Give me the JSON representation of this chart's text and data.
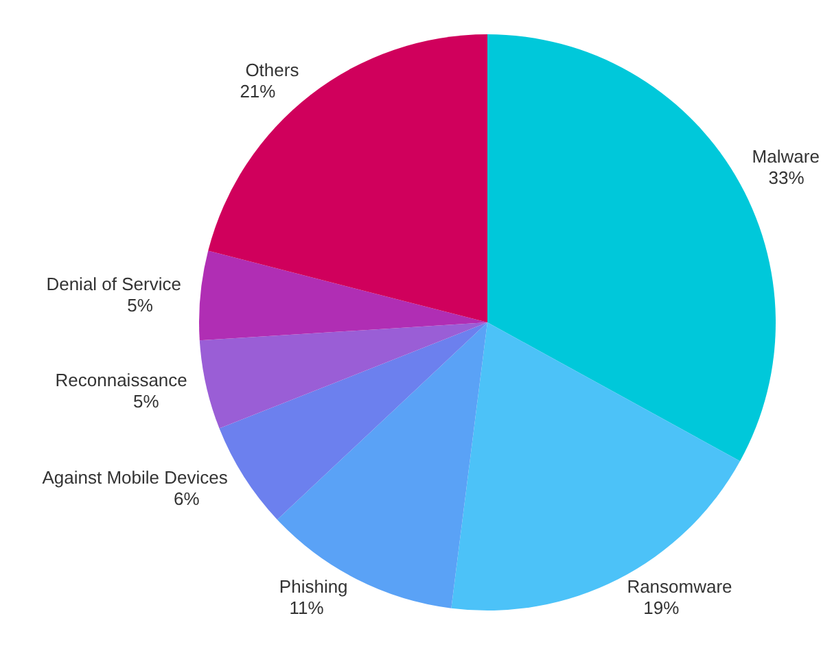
{
  "chart_data": {
    "type": "pie",
    "categories": [
      "Malware",
      "Ransomware",
      "Phishing",
      "Against Mobile Devices",
      "Reconnaissance",
      "Denial of Service",
      "Others"
    ],
    "values": [
      33,
      19,
      11,
      6,
      5,
      5,
      21
    ],
    "value_labels": [
      "33%",
      "19%",
      "11%",
      "6%",
      "5%",
      "5%",
      "21%"
    ],
    "colors": [
      "#00c8da",
      "#4cc2f8",
      "#5aa2f6",
      "#6c80ee",
      "#9a5ed6",
      "#b02eb4",
      "#d0005c"
    ]
  }
}
